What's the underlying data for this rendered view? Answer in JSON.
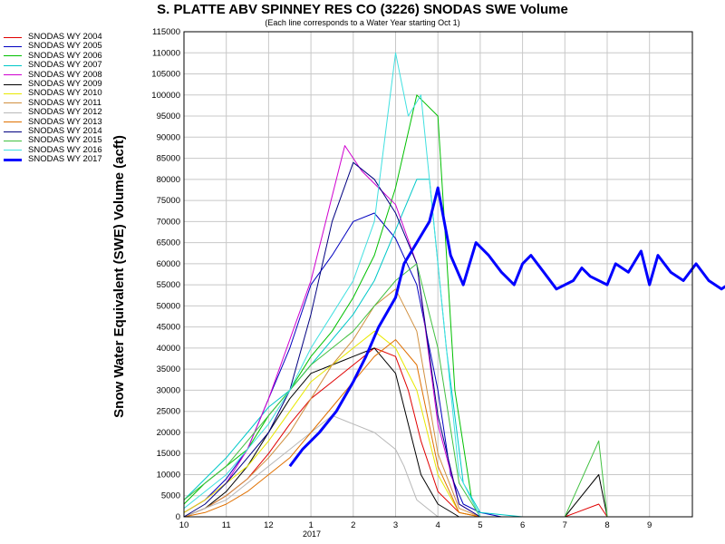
{
  "chart_data": {
    "type": "line",
    "title": "S. PLATTE ABV SPINNEY RES CO (3226) SNODAS SWE Volume",
    "subtitle": "(Each line corresponds to a Water Year starting Oct 1)",
    "ylabel": "Snow Water Equivalent (SWE) Volume (acft)",
    "xlabel": "",
    "year_label": "2017",
    "x_ticks": [
      "10",
      "11",
      "12",
      "1",
      "2",
      "3",
      "4",
      "5",
      "6",
      "7",
      "8",
      "9"
    ],
    "ylim": [
      0,
      115000
    ],
    "y_ticks": [
      0,
      5000,
      10000,
      15000,
      20000,
      25000,
      30000,
      35000,
      40000,
      45000,
      50000,
      55000,
      60000,
      65000,
      70000,
      75000,
      80000,
      85000,
      90000,
      95000,
      100000,
      105000,
      110000,
      115000
    ],
    "grid": true,
    "legend_position": "left",
    "series": [
      {
        "name": "SNODAS WY 2004",
        "color": "#e00000",
        "width": 1,
        "x": [
          0,
          0.5,
          1,
          1.5,
          2,
          2.5,
          3,
          3.5,
          4,
          4.5,
          5,
          5.3,
          5.6,
          6,
          6.5,
          7,
          7.5,
          8,
          8.5,
          9,
          9.8,
          10
        ],
        "y": [
          0,
          2000,
          5000,
          9000,
          15000,
          22000,
          28000,
          32000,
          36000,
          40000,
          38000,
          30000,
          18000,
          6000,
          1000,
          0,
          0,
          0,
          0,
          0,
          3000,
          0
        ]
      },
      {
        "name": "SNODAS WY 2005",
        "color": "#0000c0",
        "width": 1,
        "x": [
          0,
          0.5,
          1,
          1.5,
          2,
          2.5,
          3,
          3.5,
          4,
          4.5,
          5,
          5.5,
          6,
          6.3,
          6.6,
          7,
          7.5,
          8,
          9,
          10
        ],
        "y": [
          1000,
          4000,
          9000,
          16000,
          28000,
          40000,
          55000,
          62000,
          70000,
          72000,
          66000,
          55000,
          30000,
          10000,
          3000,
          1000,
          0,
          0,
          0,
          0
        ]
      },
      {
        "name": "SNODAS WY 2006",
        "color": "#00c000",
        "width": 1,
        "x": [
          0,
          0.5,
          1,
          1.5,
          2,
          2.5,
          3,
          3.5,
          4,
          4.5,
          5,
          5.5,
          6,
          6.4,
          6.8,
          7,
          8,
          9,
          10
        ],
        "y": [
          3000,
          8000,
          12000,
          16000,
          24000,
          30000,
          38000,
          44000,
          52000,
          62000,
          78000,
          100000,
          95000,
          30000,
          4000,
          0,
          0,
          0,
          0
        ]
      },
      {
        "name": "SNODAS WY 2007",
        "color": "#00c8c8",
        "width": 1,
        "x": [
          0,
          0.5,
          1,
          1.5,
          2,
          2.5,
          3,
          3.5,
          4,
          4.5,
          5,
          5.5,
          5.8,
          6.2,
          6.6,
          7,
          8,
          9,
          10
        ],
        "y": [
          4000,
          9000,
          14000,
          20000,
          26000,
          30000,
          36000,
          42000,
          48000,
          56000,
          68000,
          80000,
          80000,
          40000,
          8000,
          1000,
          0,
          0,
          0
        ]
      },
      {
        "name": "SNODAS WY 2008",
        "color": "#d000d0",
        "width": 1,
        "x": [
          0,
          0.5,
          1,
          1.5,
          2,
          2.5,
          3,
          3.4,
          3.8,
          4.2,
          4.6,
          5,
          5.5,
          6,
          6.5,
          7,
          8,
          9,
          10
        ],
        "y": [
          1000,
          4000,
          8000,
          16000,
          28000,
          42000,
          56000,
          72000,
          88000,
          82000,
          78000,
          74000,
          60000,
          22000,
          3000,
          0,
          0,
          0,
          0
        ]
      },
      {
        "name": "SNODAS WY 2009",
        "color": "#000000",
        "width": 1,
        "x": [
          0,
          0.5,
          1,
          1.5,
          2,
          2.5,
          3,
          3.5,
          4,
          4.5,
          5,
          5.3,
          5.6,
          6,
          6.5,
          7,
          8,
          9,
          9.8,
          10
        ],
        "y": [
          0,
          2000,
          6000,
          12000,
          20000,
          28000,
          34000,
          36000,
          38000,
          40000,
          34000,
          22000,
          10000,
          3000,
          0,
          0,
          0,
          0,
          10000,
          0
        ]
      },
      {
        "name": "SNODAS WY 2010",
        "color": "#e8e800",
        "width": 1,
        "x": [
          0,
          0.5,
          1,
          1.5,
          2,
          2.5,
          3,
          3.5,
          4,
          4.5,
          5,
          5.5,
          6,
          6.5,
          7,
          8,
          9,
          10
        ],
        "y": [
          1000,
          4000,
          8000,
          12000,
          18000,
          25000,
          32000,
          36000,
          40000,
          44000,
          40000,
          30000,
          10000,
          1000,
          0,
          0,
          0,
          0
        ]
      },
      {
        "name": "SNODAS WY 2011",
        "color": "#d09040",
        "width": 1,
        "x": [
          0,
          0.5,
          1,
          1.5,
          2,
          2.5,
          3,
          3.5,
          4,
          4.5,
          5,
          5.5,
          6,
          6.5,
          7,
          8,
          9,
          10
        ],
        "y": [
          0,
          2000,
          5000,
          9000,
          14000,
          20000,
          28000,
          36000,
          42000,
          50000,
          54000,
          44000,
          15000,
          2000,
          0,
          0,
          0,
          0
        ]
      },
      {
        "name": "SNODAS WY 2012",
        "color": "#b8b8b8",
        "width": 1,
        "x": [
          0,
          0.5,
          1,
          1.5,
          2,
          2.5,
          3,
          3.5,
          4,
          4.5,
          5,
          5.2,
          5.5,
          6,
          7,
          8,
          9,
          10
        ],
        "y": [
          0,
          2000,
          4000,
          8000,
          12000,
          16000,
          20000,
          24000,
          22000,
          20000,
          16000,
          12000,
          4000,
          0,
          0,
          0,
          0,
          0
        ]
      },
      {
        "name": "SNODAS WY 2013",
        "color": "#e07000",
        "width": 1,
        "x": [
          0,
          0.5,
          1,
          1.5,
          2,
          2.5,
          3,
          3.5,
          4,
          4.5,
          5,
          5.5,
          6,
          6.5,
          7,
          8,
          9,
          10
        ],
        "y": [
          0,
          1000,
          3000,
          6000,
          10000,
          14000,
          20000,
          26000,
          32000,
          38000,
          42000,
          36000,
          12000,
          1000,
          0,
          0,
          0,
          0
        ]
      },
      {
        "name": "SNODAS WY 2014",
        "color": "#000080",
        "width": 1,
        "x": [
          0,
          0.5,
          1,
          1.5,
          2,
          2.5,
          3,
          3.5,
          4,
          4.5,
          5,
          5.5,
          6,
          6.5,
          7,
          8,
          9,
          10
        ],
        "y": [
          0,
          3000,
          8000,
          14000,
          20000,
          30000,
          48000,
          70000,
          84000,
          80000,
          72000,
          60000,
          24000,
          3000,
          0,
          0,
          0,
          0
        ]
      },
      {
        "name": "SNODAS WY 2015",
        "color": "#40c040",
        "width": 1,
        "x": [
          0,
          0.5,
          1,
          1.5,
          2,
          2.5,
          3,
          3.5,
          4,
          4.5,
          5,
          5.5,
          6,
          6.5,
          7,
          8,
          9,
          9.8,
          10
        ],
        "y": [
          4000,
          8000,
          12000,
          18000,
          24000,
          30000,
          36000,
          40000,
          44000,
          50000,
          56000,
          60000,
          40000,
          8000,
          0,
          0,
          0,
          18000,
          0
        ]
      },
      {
        "name": "SNODAS WY 2016",
        "color": "#40e0e0",
        "width": 1,
        "x": [
          0,
          0.5,
          1,
          1.5,
          2,
          2.5,
          3,
          3.5,
          4,
          4.5,
          5,
          5.3,
          5.6,
          6,
          6.5,
          7,
          8,
          9,
          10
        ],
        "y": [
          2000,
          6000,
          10000,
          16000,
          22000,
          30000,
          40000,
          48000,
          56000,
          70000,
          110000,
          95000,
          100000,
          60000,
          10000,
          0,
          0,
          0,
          0
        ]
      },
      {
        "name": "SNODAS WY 2017",
        "color": "#0000ff",
        "width": 3,
        "x": [
          2.5,
          2.8,
          3.2,
          3.6,
          4,
          4.3,
          4.6,
          5,
          5.2,
          5.5,
          5.8,
          6,
          6.3,
          6.6,
          6.9,
          7.2,
          7.5,
          7.8,
          8,
          8.2,
          8.5,
          8.8,
          9.2,
          9.4,
          9.6,
          10,
          10.2,
          10.5,
          10.8,
          11,
          11.2,
          11.5,
          11.8,
          12.1,
          12.4,
          12.7,
          13
        ],
        "y": [
          12000,
          16000,
          20000,
          25000,
          32000,
          38000,
          45000,
          52000,
          60000,
          65000,
          70000,
          78000,
          62000,
          55000,
          65000,
          62000,
          58000,
          55000,
          60000,
          62000,
          58000,
          54000,
          56000,
          59000,
          57000,
          55000,
          60000,
          58000,
          63000,
          55000,
          62000,
          58000,
          56000,
          60000,
          56000,
          54000,
          56000
        ]
      }
    ]
  }
}
